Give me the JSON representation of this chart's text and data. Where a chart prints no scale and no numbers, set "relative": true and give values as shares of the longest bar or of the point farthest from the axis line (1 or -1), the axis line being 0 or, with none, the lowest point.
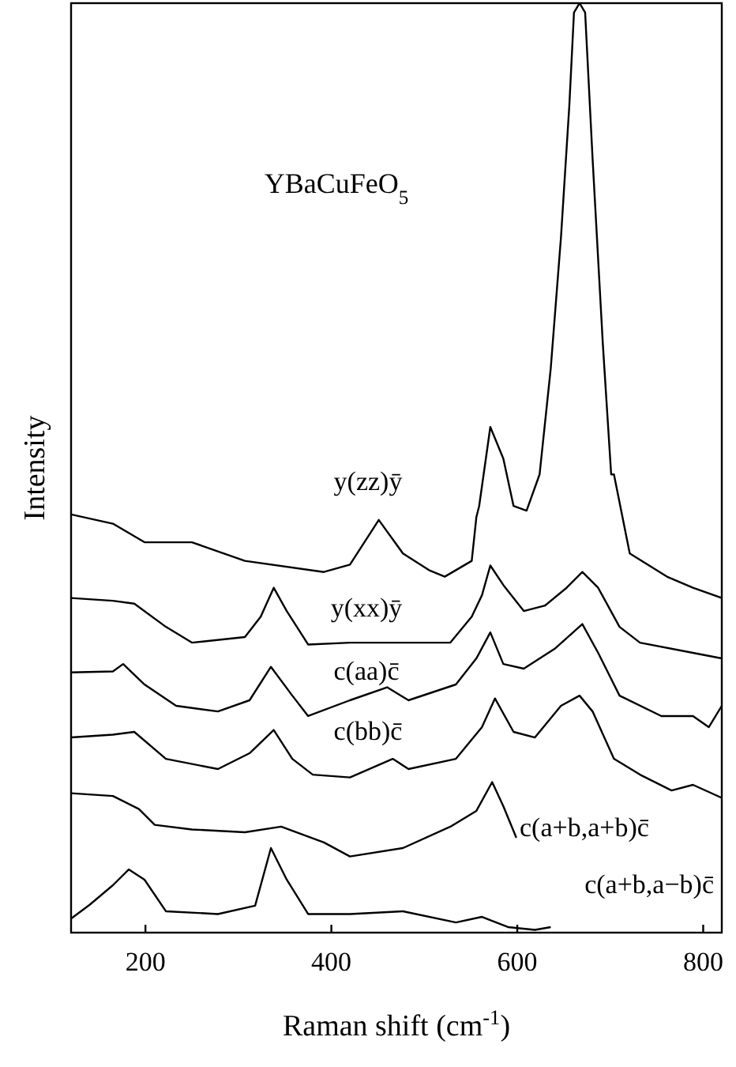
{
  "chart_data": {
    "type": "line",
    "title": "YBaCuFeO$_{5}$",
    "xlabel": "Raman shift (cm$^{-1}$)",
    "ylabel": "Intensity",
    "relative": true,
    "xlim": [
      120,
      820
    ],
    "xticks": [
      200,
      400,
      600,
      800
    ],
    "grid": false,
    "marker": "none",
    "line_style": "solid",
    "series": [
      {
        "name": "y(zz)ȳ",
        "color": "#000000",
        "x": [
          120,
          165,
          199,
          250,
          307,
          392,
          420,
          451,
          477,
          505,
          522,
          551,
          556,
          559,
          571,
          585,
          596,
          610,
          624,
          636,
          647,
          656,
          661,
          667,
          673,
          681,
          692,
          701,
          704,
          721,
          761,
          789,
          820
        ],
        "values": [
          0.45,
          0.44,
          0.42,
          0.42,
          0.4,
          0.388,
          0.396,
          0.444,
          0.408,
          0.39,
          0.383,
          0.4,
          0.447,
          0.459,
          0.544,
          0.51,
          0.459,
          0.454,
          0.493,
          0.607,
          0.748,
          0.89,
          0.99,
          1.0,
          0.99,
          0.833,
          0.634,
          0.493,
          0.493,
          0.408,
          0.383,
          0.371,
          0.36
        ]
      },
      {
        "name": "y(xx)ȳ",
        "color": "#000000",
        "x": [
          120,
          165,
          188,
          222,
          250,
          307,
          324,
          338,
          352,
          375,
          420,
          477,
          528,
          551,
          562,
          571,
          585,
          607,
          630,
          653,
          670,
          687,
          710,
          732,
          789,
          820
        ],
        "values": [
          0.36,
          0.357,
          0.354,
          0.329,
          0.312,
          0.318,
          0.34,
          0.371,
          0.346,
          0.31,
          0.312,
          0.312,
          0.312,
          0.34,
          0.363,
          0.395,
          0.374,
          0.346,
          0.352,
          0.371,
          0.388,
          0.371,
          0.329,
          0.312,
          0.301,
          0.295
        ]
      },
      {
        "name": "c(aa)c̄",
        "color": "#000000",
        "x": [
          120,
          165,
          176,
          199,
          233,
          278,
          312,
          335,
          358,
          375,
          420,
          460,
          483,
          534,
          556,
          571,
          585,
          607,
          641,
          670,
          687,
          710,
          755,
          789,
          806,
          820
        ],
        "values": [
          0.28,
          0.281,
          0.289,
          0.267,
          0.244,
          0.238,
          0.25,
          0.286,
          0.255,
          0.233,
          0.25,
          0.264,
          0.25,
          0.267,
          0.295,
          0.323,
          0.289,
          0.284,
          0.306,
          0.332,
          0.301,
          0.255,
          0.233,
          0.233,
          0.221,
          0.244
        ]
      },
      {
        "name": "c(bb)c̄",
        "color": "#000000",
        "x": [
          120,
          165,
          188,
          222,
          278,
          312,
          338,
          358,
          380,
          420,
          466,
          483,
          534,
          562,
          576,
          596,
          619,
          647,
          667,
          681,
          704,
          732,
          766,
          789,
          820
        ],
        "values": [
          0.21,
          0.213,
          0.216,
          0.187,
          0.176,
          0.193,
          0.218,
          0.187,
          0.17,
          0.167,
          0.187,
          0.176,
          0.187,
          0.221,
          0.252,
          0.216,
          0.21,
          0.244,
          0.255,
          0.238,
          0.187,
          0.17,
          0.153,
          0.159,
          0.145
        ]
      },
      {
        "name": "c(a+b,a+b)c̄",
        "color": "#000000",
        "x": [
          120,
          165,
          193,
          210,
          250,
          307,
          346,
          392,
          420,
          477,
          528,
          556,
          573,
          585,
          599
        ],
        "values": [
          0.15,
          0.147,
          0.133,
          0.116,
          0.111,
          0.108,
          0.114,
          0.097,
          0.082,
          0.091,
          0.114,
          0.131,
          0.162,
          0.136,
          0.102
        ]
      },
      {
        "name": "c(a+b,a−b)c̄",
        "color": "#000000",
        "x": [
          120,
          140,
          165,
          182,
          199,
          222,
          278,
          318,
          335,
          352,
          375,
          420,
          477,
          534,
          562,
          590,
          619,
          636
        ],
        "values": [
          0.015,
          0.03,
          0.051,
          0.068,
          0.057,
          0.023,
          0.02,
          0.029,
          0.091,
          0.057,
          0.02,
          0.02,
          0.023,
          0.011,
          0.017,
          0.006,
          0.003,
          0.006
        ]
      }
    ]
  }
}
